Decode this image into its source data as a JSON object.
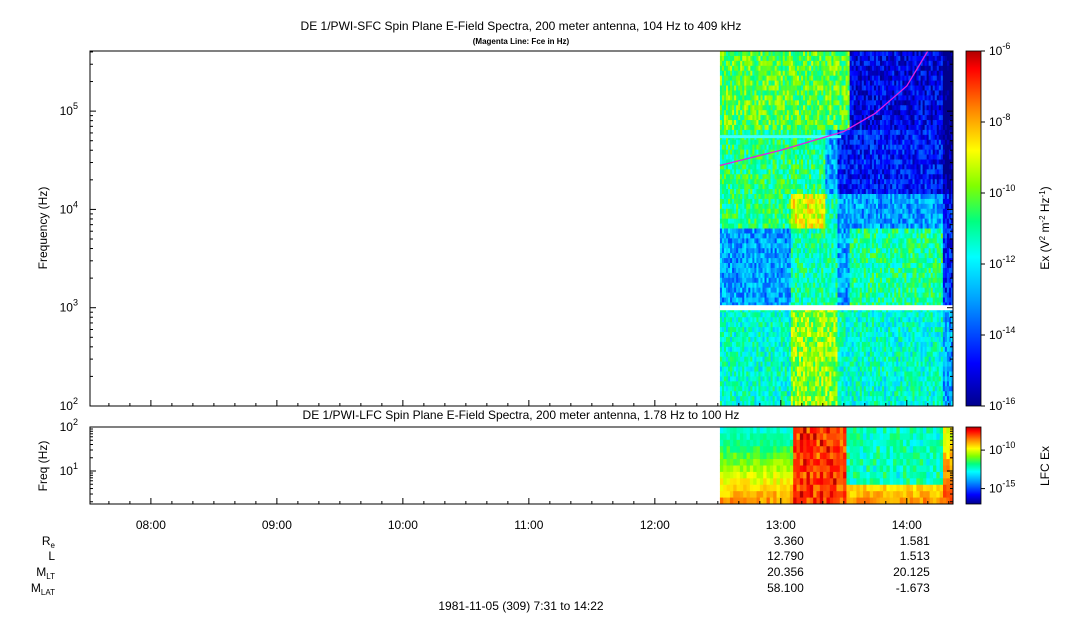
{
  "title": "DE 1/PWI-SFC  Spin Plane E-Field Spectra, 200 meter antenna, 104 Hz to 409 kHz",
  "subtitle": "(Magenta Line: Fce in Hz)",
  "colors": {
    "magenta_line": "#e020e0",
    "colormap": [
      "#00008c",
      "#0000ff",
      "#00a0ff",
      "#00ffff",
      "#00ff80",
      "#80ff00",
      "#ffff00",
      "#ff8000",
      "#ff0000",
      "#a00000"
    ]
  },
  "chart_data": [
    {
      "type": "heatmap",
      "name_of_panel": "SFC",
      "ylabel": "Frequency (Hz)",
      "y_scale": "log",
      "ylim": [
        100,
        409000
      ],
      "y_ticks": [
        {
          "base": "10",
          "exp": "2"
        },
        {
          "base": "10",
          "exp": "3"
        },
        {
          "base": "10",
          "exp": "4"
        },
        {
          "base": "10",
          "exp": "5"
        }
      ],
      "data_start": "12:31",
      "data_end": "14:22",
      "gaps": [
        "~55 kHz (white line)",
        "~1 kHz (white line)"
      ],
      "colorbar": {
        "label_pre": "Ex (V",
        "label_mid": " m",
        "label_mid2": " Hz",
        "label_end": ")",
        "range": [
          "1e-16",
          "1e-6"
        ],
        "ticks": [
          {
            "base": "10",
            "exp": "-6"
          },
          {
            "base": "10",
            "exp": "-8"
          },
          {
            "base": "10",
            "exp": "-10"
          },
          {
            "base": "10",
            "exp": "-12"
          },
          {
            "base": "10",
            "exp": "-14"
          },
          {
            "base": "10",
            "exp": "-16"
          }
        ]
      },
      "fce_line": {
        "label": "Fce in Hz",
        "points": [
          {
            "time": "12:31",
            "hz": 28000
          },
          {
            "time": "13:00",
            "hz": 40000
          },
          {
            "time": "13:30",
            "hz": 62000
          },
          {
            "time": "13:45",
            "hz": 95000
          },
          {
            "time": "14:00",
            "hz": 180000
          },
          {
            "time": "14:10",
            "hz": 409000
          }
        ]
      }
    },
    {
      "type": "heatmap",
      "name_of_panel": "LFC",
      "title": "DE 1/PWI-LFC  Spin Plane E-Field Spectra, 200 meter antenna, 1.78 Hz to 100 Hz",
      "ylabel": "Freq (Hz)",
      "y_scale": "log",
      "ylim": [
        1.78,
        100
      ],
      "y_ticks": [
        {
          "base": "10",
          "exp": "1"
        },
        {
          "base": "10",
          "exp": "2"
        }
      ],
      "data_start": "12:31",
      "data_end": "14:22",
      "colorbar": {
        "label": "LFC Ex",
        "ticks": [
          {
            "base": "10",
            "exp": "-10"
          },
          {
            "base": "10",
            "exp": "-15"
          }
        ]
      }
    }
  ],
  "time_axis": {
    "ticks": [
      "08:00",
      "09:00",
      "10:00",
      "11:00",
      "12:00",
      "13:00",
      "14:00"
    ]
  },
  "ephemeris": {
    "labels": [
      {
        "main": "R",
        "sub": "e"
      },
      {
        "main": "L",
        "sub": ""
      },
      {
        "main": "M",
        "sub": "LT"
      },
      {
        "main": "M",
        "sub": "LAT"
      }
    ],
    "columns": [
      {
        "time": "13:00",
        "values": [
          "3.360",
          "12.790",
          "20.356",
          "58.100"
        ]
      },
      {
        "time": "14:00",
        "values": [
          "1.581",
          "1.513",
          "20.125",
          "-1.673"
        ]
      }
    ]
  },
  "footer": "1981-11-05 (309) 7:31 to 14:22"
}
